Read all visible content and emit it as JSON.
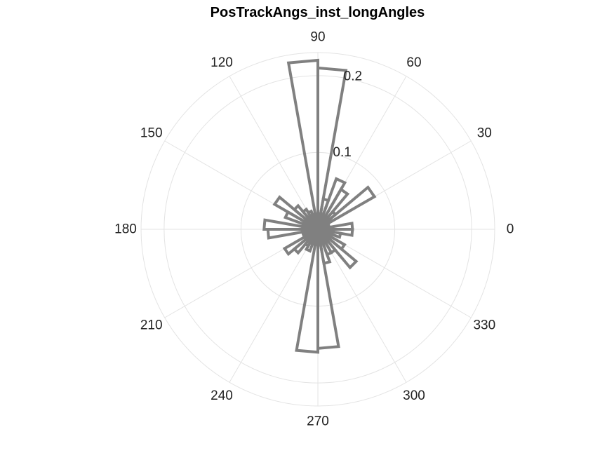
{
  "chart_data": {
    "type": "polar-histogram",
    "title": "PosTrackAngs_inst_longAngles",
    "theta_ticks": [
      "0",
      "30",
      "60",
      "90",
      "120",
      "150",
      "180",
      "210",
      "240",
      "270",
      "300",
      "330"
    ],
    "r_ticks": [
      "0.1",
      "0.2"
    ],
    "rlim": [
      0,
      0.23
    ],
    "grid": true,
    "bin_width_deg": 10,
    "bins": [
      {
        "center": 5,
        "value": 0.045
      },
      {
        "center": 15,
        "value": 0.015
      },
      {
        "center": 25,
        "value": 0.012
      },
      {
        "center": 35,
        "value": 0.085
      },
      {
        "center": 45,
        "value": 0.03
      },
      {
        "center": 55,
        "value": 0.06
      },
      {
        "center": 65,
        "value": 0.07
      },
      {
        "center": 75,
        "value": 0.04
      },
      {
        "center": 85,
        "value": 0.21
      },
      {
        "center": 95,
        "value": 0.22
      },
      {
        "center": 105,
        "value": 0.02
      },
      {
        "center": 115,
        "value": 0.025
      },
      {
        "center": 125,
        "value": 0.03
      },
      {
        "center": 135,
        "value": 0.04
      },
      {
        "center": 145,
        "value": 0.065
      },
      {
        "center": 155,
        "value": 0.045
      },
      {
        "center": 165,
        "value": 0.02
      },
      {
        "center": 175,
        "value": 0.07
      },
      {
        "center": 185,
        "value": 0.065
      },
      {
        "center": 195,
        "value": 0.02
      },
      {
        "center": 205,
        "value": 0.02
      },
      {
        "center": 215,
        "value": 0.05
      },
      {
        "center": 225,
        "value": 0.04
      },
      {
        "center": 235,
        "value": 0.025
      },
      {
        "center": 245,
        "value": 0.03
      },
      {
        "center": 255,
        "value": 0.02
      },
      {
        "center": 265,
        "value": 0.16
      },
      {
        "center": 275,
        "value": 0.155
      },
      {
        "center": 285,
        "value": 0.045
      },
      {
        "center": 295,
        "value": 0.035
      },
      {
        "center": 305,
        "value": 0.035
      },
      {
        "center": 315,
        "value": 0.065
      },
      {
        "center": 325,
        "value": 0.04
      },
      {
        "center": 335,
        "value": 0.015
      },
      {
        "center": 345,
        "value": 0.03
      },
      {
        "center": 355,
        "value": 0.045
      }
    ],
    "colors": {
      "bars": "#808080",
      "grid": "#e3e3e3",
      "text": "#222222"
    }
  }
}
